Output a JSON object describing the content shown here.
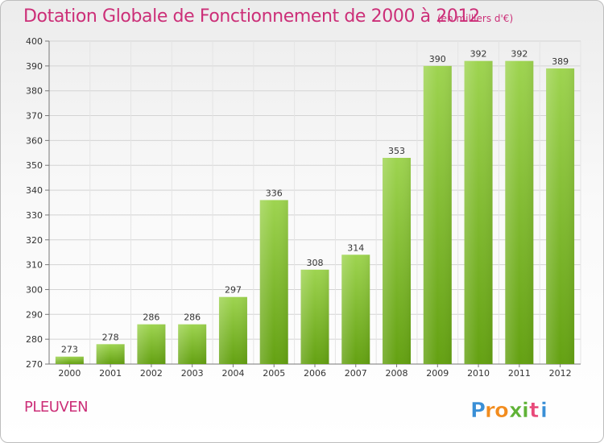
{
  "header": {
    "title": "Dotation Globale de Fonctionnement de 2000 à 2012",
    "unit_note": "(en milliers d'€)"
  },
  "footer": {
    "commune": "PLEUVEN",
    "brand": "Proxiti"
  },
  "colors": {
    "accent": "#cc2f78",
    "bar_light": "#9ed450",
    "bar_dark": "#64a112",
    "grid": "#d3d3d3",
    "axis": "#777777"
  },
  "chart_data": {
    "type": "bar",
    "categories": [
      "2000",
      "2001",
      "2002",
      "2003",
      "2004",
      "2005",
      "2006",
      "2007",
      "2008",
      "2009",
      "2010",
      "2011",
      "2012"
    ],
    "values": [
      273,
      278,
      286,
      286,
      297,
      336,
      308,
      314,
      353,
      390,
      392,
      392,
      389
    ],
    "data_labels": [
      "273",
      "278",
      "286",
      "286",
      "297",
      "336",
      "308",
      "314",
      "353",
      "390",
      "392",
      "392",
      "389"
    ],
    "title": "Dotation Globale de Fonctionnement de 2000 à 2012",
    "ylim": [
      270,
      400
    ],
    "yticks": [
      270,
      280,
      290,
      300,
      310,
      320,
      330,
      340,
      350,
      360,
      370,
      380,
      390,
      400
    ],
    "grid": true,
    "legend": "none"
  }
}
